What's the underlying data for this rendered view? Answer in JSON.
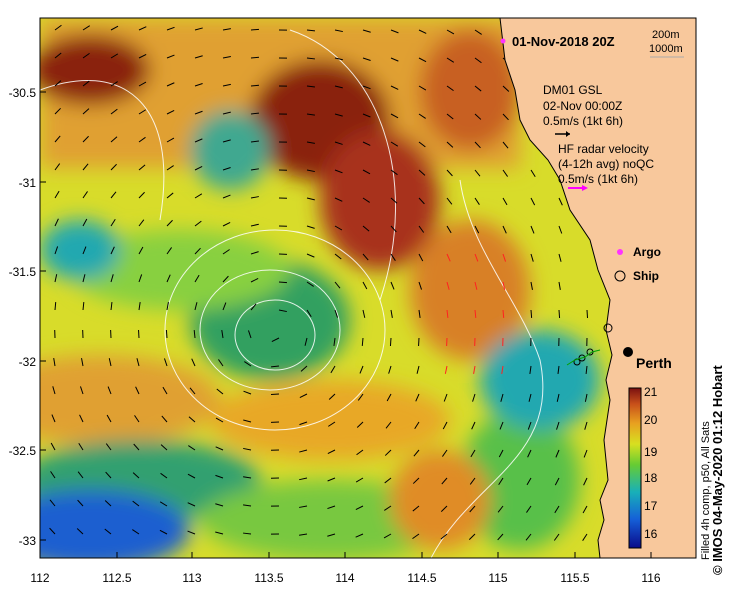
{
  "map": {
    "date_title": "01-Nov-2018 20Z",
    "depth_contours": [
      "200m",
      "1000m"
    ],
    "glider": {
      "label": "DM01 GSL",
      "time": "02-Nov 00:00Z",
      "scale": "0.5m/s (1kt 6h)"
    },
    "hf_radar": {
      "line1": "HF radar velocity",
      "line2": "(4-12h avg) noQC",
      "scale": "0.5m/s (1kt 6h)"
    },
    "legend": {
      "argo": "Argo",
      "ship": "Ship"
    },
    "city": "Perth",
    "x_ticks": [
      "112",
      "112.5",
      "113",
      "113.5",
      "114",
      "114.5",
      "115",
      "115.5",
      "116"
    ],
    "y_ticks": [
      "-30.5",
      "-31",
      "-31.5",
      "-32",
      "-32.5",
      "-33"
    ],
    "colorbar": {
      "ticks": [
        "21",
        "20",
        "19",
        "18",
        "17",
        "16"
      ],
      "title": "Filled 4h comp, p50, All Sats"
    },
    "credit": "© IMOS 04-May-2020 01:12 Hobart",
    "colors": {
      "land": "#f8c89c",
      "argo": "#ff33ff",
      "radar_arrow": "#ff00ff",
      "contour": "#e8e8e8"
    }
  }
}
